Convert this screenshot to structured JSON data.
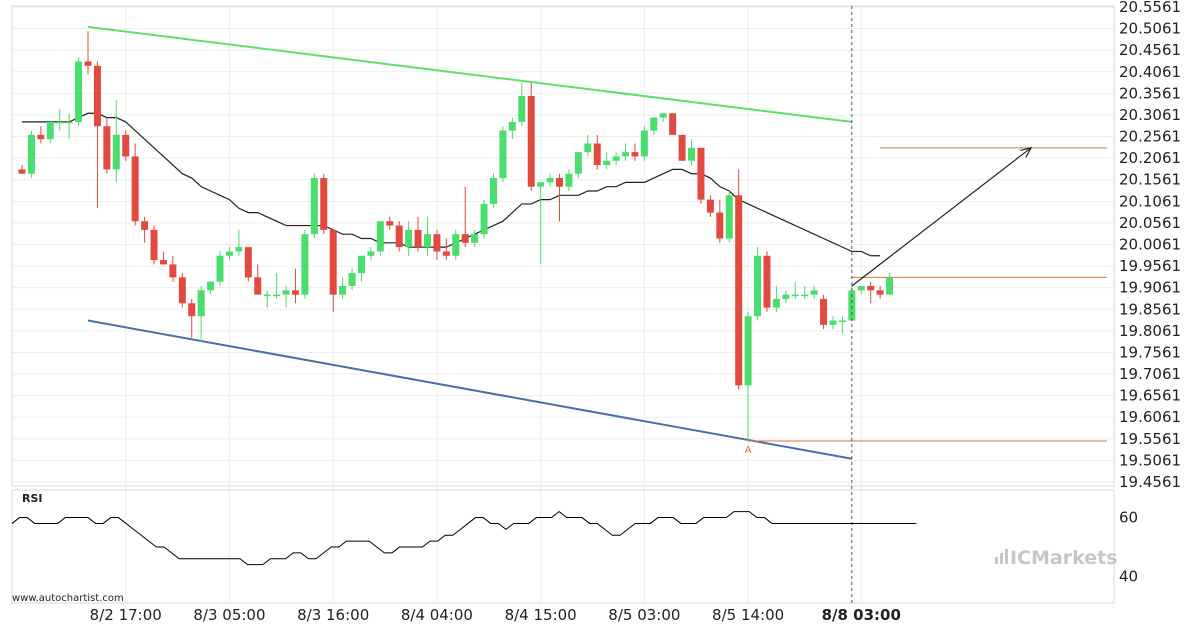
{
  "source_label": "www.autochartist.com",
  "brand": {
    "name": "ICMarkets"
  },
  "colors": {
    "bull": "#4ade6e",
    "bear": "#e2493f",
    "resistance": "#5fe06a",
    "support": "#4a6fa8",
    "level": "#e0733a",
    "ma": "#222222",
    "rsi": "#000000"
  },
  "chart_data": [
    {
      "type": "candlestick",
      "y_ticks": [
        "20.5561",
        "20.5061",
        "20.4561",
        "20.4061",
        "20.3561",
        "20.3061",
        "20.2561",
        "20.2061",
        "20.1561",
        "20.1061",
        "20.0561",
        "20.0061",
        "19.9561",
        "19.9061",
        "19.8561",
        "19.8061",
        "19.7561",
        "19.7061",
        "19.6561",
        "19.6061",
        "19.5561",
        "19.5061",
        "19.4561"
      ],
      "ylim": [
        19.4561,
        20.5561
      ],
      "x_ticks": [
        "8/2 17:00",
        "8/3 05:00",
        "8/3 16:00",
        "8/4 04:00",
        "8/4 15:00",
        "8/5 03:00",
        "8/5 14:00",
        "8/8 03:00"
      ],
      "x_tick_bold": [
        false,
        false,
        false,
        false,
        false,
        false,
        false,
        true
      ],
      "x_tick_index": [
        11,
        22,
        33,
        44,
        55,
        66,
        77,
        89
      ],
      "forecast_index": 88,
      "candles": [
        {
          "o": 20.18,
          "h": 20.19,
          "l": 20.17,
          "c": 20.17
        },
        {
          "o": 20.17,
          "h": 20.27,
          "l": 20.16,
          "c": 20.26
        },
        {
          "o": 20.26,
          "h": 20.28,
          "l": 20.24,
          "c": 20.25
        },
        {
          "o": 20.25,
          "h": 20.29,
          "l": 20.24,
          "c": 20.29
        },
        {
          "o": 20.29,
          "h": 20.32,
          "l": 20.27,
          "c": 20.29
        },
        {
          "o": 20.29,
          "h": 20.31,
          "l": 20.25,
          "c": 20.29
        },
        {
          "o": 20.29,
          "h": 20.44,
          "l": 20.28,
          "c": 20.43
        },
        {
          "o": 20.43,
          "h": 20.5,
          "l": 20.4,
          "c": 20.42
        },
        {
          "o": 20.42,
          "h": 20.43,
          "l": 20.09,
          "c": 20.28
        },
        {
          "o": 20.28,
          "h": 20.3,
          "l": 20.17,
          "c": 20.18
        },
        {
          "o": 20.18,
          "h": 20.34,
          "l": 20.15,
          "c": 20.26
        },
        {
          "o": 20.26,
          "h": 20.27,
          "l": 20.2,
          "c": 20.21
        },
        {
          "o": 20.21,
          "h": 20.24,
          "l": 20.05,
          "c": 20.06
        },
        {
          "o": 20.06,
          "h": 20.07,
          "l": 20.01,
          "c": 20.04
        },
        {
          "o": 20.04,
          "h": 20.05,
          "l": 19.96,
          "c": 19.97
        },
        {
          "o": 19.97,
          "h": 19.99,
          "l": 19.96,
          "c": 19.96
        },
        {
          "o": 19.96,
          "h": 19.98,
          "l": 19.92,
          "c": 19.93
        },
        {
          "o": 19.93,
          "h": 19.94,
          "l": 19.86,
          "c": 19.87
        },
        {
          "o": 19.87,
          "h": 19.88,
          "l": 19.79,
          "c": 19.84
        },
        {
          "o": 19.84,
          "h": 19.91,
          "l": 19.78,
          "c": 19.9
        },
        {
          "o": 19.9,
          "h": 19.92,
          "l": 19.89,
          "c": 19.92
        },
        {
          "o": 19.92,
          "h": 19.99,
          "l": 19.91,
          "c": 19.98
        },
        {
          "o": 19.98,
          "h": 20.0,
          "l": 19.97,
          "c": 19.99
        },
        {
          "o": 19.99,
          "h": 20.04,
          "l": 19.98,
          "c": 20.0
        },
        {
          "o": 20.0,
          "h": 20.0,
          "l": 19.92,
          "c": 19.93
        },
        {
          "o": 19.93,
          "h": 19.96,
          "l": 19.89,
          "c": 19.89
        },
        {
          "o": 19.89,
          "h": 19.9,
          "l": 19.86,
          "c": 19.89
        },
        {
          "o": 19.89,
          "h": 19.94,
          "l": 19.88,
          "c": 19.89
        },
        {
          "o": 19.89,
          "h": 19.91,
          "l": 19.86,
          "c": 19.9
        },
        {
          "o": 19.9,
          "h": 19.95,
          "l": 19.87,
          "c": 19.89
        },
        {
          "o": 19.89,
          "h": 20.04,
          "l": 19.88,
          "c": 20.03
        },
        {
          "o": 20.03,
          "h": 20.17,
          "l": 20.02,
          "c": 20.16
        },
        {
          "o": 20.16,
          "h": 20.17,
          "l": 20.03,
          "c": 20.04
        },
        {
          "o": 20.04,
          "h": 20.04,
          "l": 19.85,
          "c": 19.89
        },
        {
          "o": 19.89,
          "h": 19.93,
          "l": 19.88,
          "c": 19.91
        },
        {
          "o": 19.91,
          "h": 19.95,
          "l": 19.9,
          "c": 19.94
        },
        {
          "o": 19.94,
          "h": 19.98,
          "l": 19.92,
          "c": 19.98
        },
        {
          "o": 19.98,
          "h": 20.0,
          "l": 19.97,
          "c": 19.99
        },
        {
          "o": 19.99,
          "h": 20.06,
          "l": 19.98,
          "c": 20.06
        },
        {
          "o": 20.06,
          "h": 20.07,
          "l": 20.04,
          "c": 20.05
        },
        {
          "o": 20.05,
          "h": 20.06,
          "l": 19.99,
          "c": 20.0
        },
        {
          "o": 20.0,
          "h": 20.06,
          "l": 19.98,
          "c": 20.04
        },
        {
          "o": 20.04,
          "h": 20.07,
          "l": 19.99,
          "c": 20.0
        },
        {
          "o": 20.0,
          "h": 20.07,
          "l": 19.98,
          "c": 20.03
        },
        {
          "o": 20.03,
          "h": 20.04,
          "l": 19.97,
          "c": 19.99
        },
        {
          "o": 19.99,
          "h": 20.02,
          "l": 19.97,
          "c": 19.98
        },
        {
          "o": 19.98,
          "h": 20.04,
          "l": 19.97,
          "c": 20.03
        },
        {
          "o": 20.03,
          "h": 20.14,
          "l": 20.0,
          "c": 20.01
        },
        {
          "o": 20.01,
          "h": 20.04,
          "l": 20.0,
          "c": 20.03
        },
        {
          "o": 20.03,
          "h": 20.11,
          "l": 20.02,
          "c": 20.1
        },
        {
          "o": 20.1,
          "h": 20.17,
          "l": 20.09,
          "c": 20.16
        },
        {
          "o": 20.16,
          "h": 20.28,
          "l": 20.15,
          "c": 20.27
        },
        {
          "o": 20.27,
          "h": 20.3,
          "l": 20.25,
          "c": 20.29
        },
        {
          "o": 20.29,
          "h": 20.38,
          "l": 20.28,
          "c": 20.35
        },
        {
          "o": 20.35,
          "h": 20.38,
          "l": 20.13,
          "c": 20.14
        },
        {
          "o": 20.14,
          "h": 20.15,
          "l": 19.96,
          "c": 20.15
        },
        {
          "o": 20.15,
          "h": 20.17,
          "l": 20.14,
          "c": 20.16
        },
        {
          "o": 20.16,
          "h": 20.17,
          "l": 20.06,
          "c": 20.14
        },
        {
          "o": 20.14,
          "h": 20.18,
          "l": 20.13,
          "c": 20.17
        },
        {
          "o": 20.17,
          "h": 20.22,
          "l": 20.16,
          "c": 20.22
        },
        {
          "o": 20.22,
          "h": 20.26,
          "l": 20.21,
          "c": 20.24
        },
        {
          "o": 20.24,
          "h": 20.26,
          "l": 20.18,
          "c": 20.19
        },
        {
          "o": 20.19,
          "h": 20.22,
          "l": 20.18,
          "c": 20.2
        },
        {
          "o": 20.2,
          "h": 20.22,
          "l": 20.19,
          "c": 20.21
        },
        {
          "o": 20.21,
          "h": 20.24,
          "l": 20.2,
          "c": 20.22
        },
        {
          "o": 20.22,
          "h": 20.24,
          "l": 20.2,
          "c": 20.21
        },
        {
          "o": 20.21,
          "h": 20.28,
          "l": 20.2,
          "c": 20.27
        },
        {
          "o": 20.27,
          "h": 20.3,
          "l": 20.26,
          "c": 20.3
        },
        {
          "o": 20.3,
          "h": 20.31,
          "l": 20.29,
          "c": 20.31
        },
        {
          "o": 20.31,
          "h": 20.31,
          "l": 20.26,
          "c": 20.26
        },
        {
          "o": 20.26,
          "h": 20.26,
          "l": 20.2,
          "c": 20.2
        },
        {
          "o": 20.2,
          "h": 20.25,
          "l": 20.19,
          "c": 20.23
        },
        {
          "o": 20.23,
          "h": 20.23,
          "l": 20.1,
          "c": 20.11
        },
        {
          "o": 20.11,
          "h": 20.12,
          "l": 20.07,
          "c": 20.08
        },
        {
          "o": 20.08,
          "h": 20.11,
          "l": 20.01,
          "c": 20.02
        },
        {
          "o": 20.02,
          "h": 20.13,
          "l": 20.01,
          "c": 20.12
        },
        {
          "o": 20.12,
          "h": 20.18,
          "l": 19.67,
          "c": 19.68
        },
        {
          "o": 19.68,
          "h": 19.85,
          "l": 19.55,
          "c": 19.84
        },
        {
          "o": 19.84,
          "h": 20.0,
          "l": 19.83,
          "c": 19.98
        },
        {
          "o": 19.98,
          "h": 19.99,
          "l": 19.85,
          "c": 19.86
        },
        {
          "o": 19.86,
          "h": 19.91,
          "l": 19.85,
          "c": 19.88
        },
        {
          "o": 19.88,
          "h": 19.9,
          "l": 19.87,
          "c": 19.89
        },
        {
          "o": 19.89,
          "h": 19.92,
          "l": 19.88,
          "c": 19.89
        },
        {
          "o": 19.89,
          "h": 19.91,
          "l": 19.88,
          "c": 19.89
        },
        {
          "o": 19.89,
          "h": 19.91,
          "l": 19.88,
          "c": 19.9
        },
        {
          "o": 19.88,
          "h": 19.89,
          "l": 19.81,
          "c": 19.82
        },
        {
          "o": 19.82,
          "h": 19.84,
          "l": 19.81,
          "c": 19.83
        },
        {
          "o": 19.83,
          "h": 19.84,
          "l": 19.8,
          "c": 19.83
        },
        {
          "o": 19.83,
          "h": 19.91,
          "l": 19.83,
          "c": 19.9
        },
        {
          "o": 19.9,
          "h": 19.91,
          "l": 19.89,
          "c": 19.91
        },
        {
          "o": 19.91,
          "h": 19.92,
          "l": 19.87,
          "c": 19.9
        },
        {
          "o": 19.9,
          "h": 19.91,
          "l": 19.88,
          "c": 19.89
        },
        {
          "o": 19.89,
          "h": 19.94,
          "l": 19.89,
          "c": 19.93
        }
      ],
      "moving_average": [
        20.29,
        20.29,
        20.29,
        20.29,
        20.29,
        20.29,
        20.3,
        20.31,
        20.31,
        20.3,
        20.3,
        20.29,
        20.27,
        20.25,
        20.23,
        20.21,
        20.19,
        20.17,
        20.16,
        20.14,
        20.13,
        20.12,
        20.11,
        20.09,
        20.08,
        20.08,
        20.07,
        20.06,
        20.05,
        20.05,
        20.05,
        20.05,
        20.05,
        20.04,
        20.03,
        20.03,
        20.02,
        20.02,
        20.01,
        20.01,
        20.01,
        20.0,
        20.0,
        20.0,
        20.0,
        20.0,
        20.01,
        20.02,
        20.03,
        20.04,
        20.05,
        20.06,
        20.08,
        20.1,
        20.1,
        20.11,
        20.11,
        20.12,
        20.12,
        20.12,
        20.13,
        20.13,
        20.14,
        20.14,
        20.15,
        20.15,
        20.15,
        20.16,
        20.17,
        20.18,
        20.18,
        20.17,
        20.17,
        20.16,
        20.14,
        20.13,
        20.11,
        20.1,
        20.09,
        20.08,
        20.07,
        20.06,
        20.05,
        20.04,
        20.03,
        20.02,
        20.01,
        20.0,
        19.99,
        19.99,
        19.98,
        19.98
      ],
      "channel": {
        "resistance": {
          "start": {
            "i": 7,
            "v": 20.51
          },
          "end": {
            "i": 88,
            "v": 20.29
          }
        },
        "support": {
          "start": {
            "i": 7,
            "v": 19.83
          },
          "end": {
            "i": 88,
            "v": 19.51
          }
        }
      },
      "levels": [
        {
          "value": 20.23,
          "from_index": 91
        },
        {
          "value": 19.93,
          "from_index": 88
        },
        {
          "value": 19.551,
          "from_index": 77
        }
      ],
      "forecast_arrow": {
        "from": {
          "i": 88,
          "v": 19.91
        },
        "to": {
          "i": 107,
          "v": 20.23
        }
      },
      "point_label": {
        "text": "A",
        "i": 77,
        "v": 19.551
      }
    },
    {
      "type": "line",
      "title": "RSI",
      "y_ticks": [
        "60",
        "40"
      ],
      "ylim": [
        32,
        68
      ],
      "values": [
        58,
        60,
        60,
        58,
        58,
        58,
        58,
        60,
        60,
        60,
        60,
        58,
        58,
        60,
        60,
        58,
        56,
        54,
        52,
        50,
        50,
        48,
        46,
        46,
        46,
        46,
        46,
        46,
        46,
        46,
        46,
        44,
        44,
        44,
        46,
        46,
        46,
        48,
        48,
        46,
        46,
        48,
        50,
        50,
        52,
        52,
        52,
        52,
        50,
        48,
        48,
        50,
        50,
        50,
        50,
        52,
        52,
        54,
        54,
        56,
        58,
        60,
        60,
        58,
        58,
        56,
        58,
        58,
        58,
        60,
        60,
        60,
        62,
        60,
        60,
        60,
        58,
        58,
        56,
        54,
        54,
        56,
        58,
        58,
        58,
        60,
        60,
        60,
        58,
        58,
        58,
        60,
        60,
        60,
        60,
        62,
        62,
        62,
        60,
        60,
        58,
        58,
        58,
        58,
        58,
        58,
        58,
        58,
        58,
        58,
        58,
        58,
        58,
        58,
        58,
        58,
        58,
        58,
        58,
        58
      ]
    }
  ]
}
